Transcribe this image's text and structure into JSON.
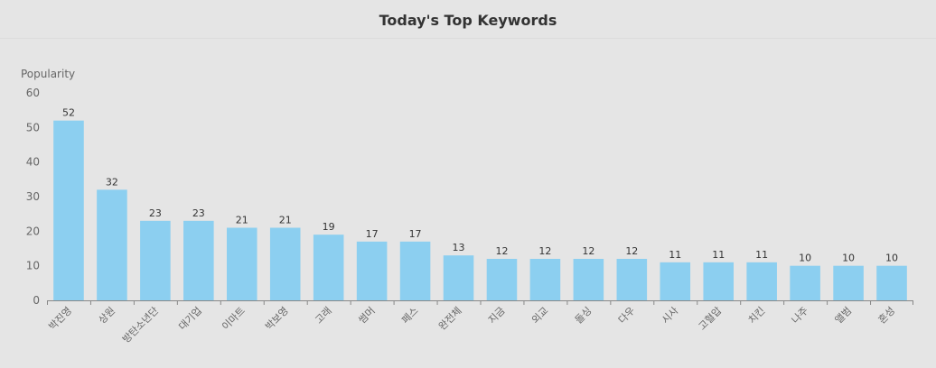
{
  "header": {
    "title": "Today's Top Keywords"
  },
  "colors": {
    "bar": "#8ccff0",
    "axis": "#888888",
    "background": "#e5e5e5"
  },
  "chart_data": {
    "type": "bar",
    "title": "Today's Top Keywords",
    "xlabel": "",
    "ylabel": "Popularity",
    "ylim": [
      0,
      60
    ],
    "yticks": [
      0,
      10,
      20,
      30,
      40,
      50,
      60
    ],
    "grid": false,
    "data_labels": true,
    "categories": [
      "박진영",
      "상원",
      "방탄소년단",
      "대기업",
      "이마트",
      "박보영",
      "고래",
      "썸머",
      "페스",
      "완전체",
      "지금",
      "외교",
      "돌싱",
      "다우",
      "시사",
      "고혈압",
      "치킨",
      "나주",
      "앨범",
      "혼성"
    ],
    "values": [
      52,
      32,
      23,
      23,
      21,
      21,
      19,
      17,
      17,
      13,
      12,
      12,
      12,
      12,
      11,
      11,
      11,
      10,
      10,
      10
    ]
  }
}
